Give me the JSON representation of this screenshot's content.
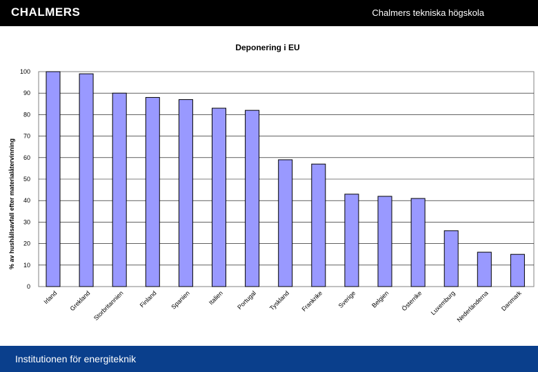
{
  "header": {
    "logo_text": "CHALMERS",
    "school_name": "Chalmers tekniska högskola"
  },
  "footer": {
    "department": "Institutionen för energiteknik"
  },
  "colors": {
    "top_bar": "#000000",
    "bottom_bar": "#0a3f8c",
    "bar_fill": "#9999ff",
    "bar_stroke": "#000000",
    "plot_border": "#808080",
    "grid": "#000000"
  },
  "chart_data": {
    "type": "bar",
    "title": "Deponering i EU",
    "xlabel": "",
    "ylabel": "% av hushållsavfall efter materialåtervinning",
    "ylim": [
      0,
      100
    ],
    "yticks": [
      0,
      10,
      20,
      30,
      40,
      50,
      60,
      70,
      80,
      90,
      100
    ],
    "grid": true,
    "legend": "none",
    "categories": [
      "Irland",
      "Grekland",
      "Storbritannien",
      "Finland",
      "Spanien",
      "Italien",
      "Portugal",
      "Tyskland",
      "Frankrike",
      "Sverige",
      "Belgien",
      "Österrike",
      "Luxemburg",
      "Nederländerna",
      "Danmark"
    ],
    "series": [
      {
        "values": [
          100,
          99,
          90,
          88,
          87,
          83,
          82,
          59,
          57,
          43,
          42,
          41,
          26,
          16,
          15
        ]
      }
    ]
  }
}
